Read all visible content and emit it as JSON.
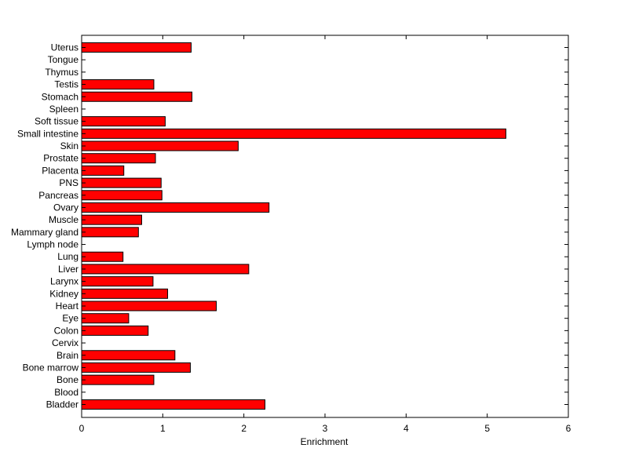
{
  "chart_data": {
    "type": "bar",
    "orientation": "horizontal",
    "categories": [
      "Uterus",
      "Tongue",
      "Thymus",
      "Testis",
      "Stomach",
      "Spleen",
      "Soft tissue",
      "Small intestine",
      "Skin",
      "Prostate",
      "Placenta",
      "PNS",
      "Pancreas",
      "Ovary",
      "Muscle",
      "Mammary gland",
      "Lymph node",
      "Lung",
      "Liver",
      "Larynx",
      "Kidney",
      "Heart",
      "Eye",
      "Colon",
      "Cervix",
      "Brain",
      "Bone marrow",
      "Bone",
      "Blood",
      "Bladder"
    ],
    "values": [
      1.35,
      0,
      0,
      0.89,
      1.36,
      0,
      1.03,
      5.23,
      1.93,
      0.91,
      0.52,
      0.98,
      0.99,
      2.31,
      0.74,
      0.7,
      0,
      0.51,
      2.06,
      0.88,
      1.06,
      1.66,
      0.58,
      0.82,
      0,
      1.15,
      1.34,
      0.89,
      0,
      2.26
    ],
    "title": "",
    "xlabel": "Enrichment",
    "ylabel": "",
    "xlim": [
      0,
      6
    ],
    "xticks": [
      "0",
      "1",
      "2",
      "3",
      "4",
      "5",
      "6"
    ],
    "grid": false,
    "bar_color": "#ff0000",
    "edge_color": "#000000"
  }
}
